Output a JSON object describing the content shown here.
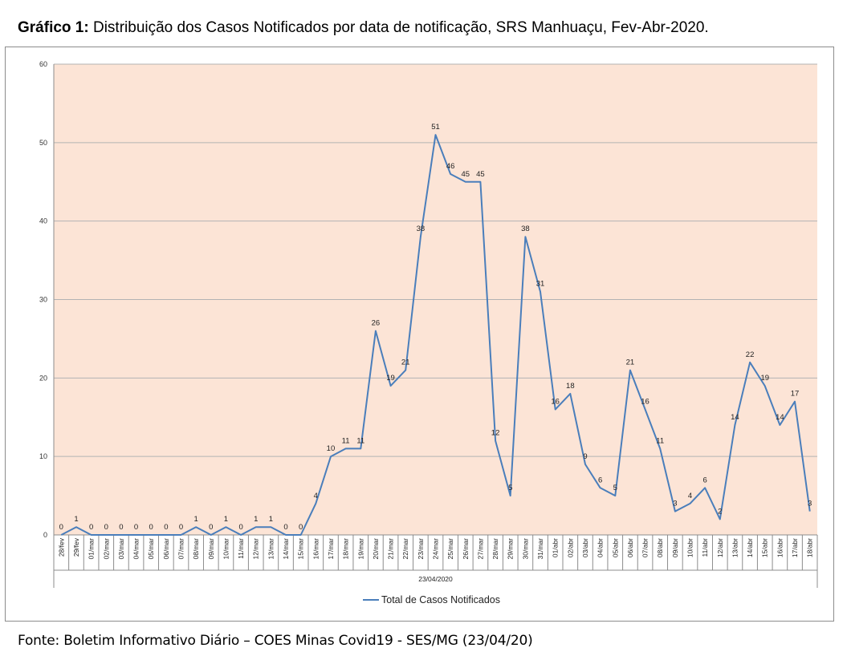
{
  "header": {
    "title_prefix": "Gráfico 1:",
    "title_text": " Distribuição dos Casos Notificados por data de notificação, SRS Manhuaçu, Fev-Abr-2020."
  },
  "footer": {
    "source": "Fonte: Boletim Informativo Diário – COES Minas Covid19  - SES/MG (23/04/20)"
  },
  "colors": {
    "plot_background": "#fce4d6",
    "line": "#4a7ebb",
    "grid": "#b3b3b3"
  },
  "chart_data": {
    "type": "line",
    "title": "",
    "xlabel": "",
    "ylabel": "",
    "x_group_label": "23/04/2020",
    "ylim": [
      0,
      60
    ],
    "yticks": [
      0,
      10,
      20,
      30,
      40,
      50,
      60
    ],
    "grid": true,
    "legend_position": "bottom",
    "categories": [
      "28/fev",
      "29/fev",
      "01/mar",
      "02/mar",
      "03/mar",
      "04/mar",
      "05/mar",
      "06/mar",
      "07/mar",
      "08/mar",
      "09/mar",
      "10/mar",
      "11/mar",
      "12/mar",
      "13/mar",
      "14/mar",
      "15/mar",
      "16/mar",
      "17/mar",
      "18/mar",
      "19/mar",
      "20/mar",
      "21/mar",
      "22/mar",
      "23/mar",
      "24/mar",
      "25/mar",
      "26/mar",
      "27/mar",
      "28/mar",
      "29/mar",
      "30/mar",
      "31/mar",
      "01/abr",
      "02/abr",
      "03/abr",
      "04/abr",
      "05/abr",
      "06/abr",
      "07/abr",
      "08/abr",
      "09/abr",
      "10/abr",
      "11/abr",
      "12/abr",
      "13/abr",
      "14/abr",
      "15/abr",
      "16/abr",
      "17/abr",
      "18/abr"
    ],
    "series": [
      {
        "name": "Total de Casos Notificados",
        "values": [
          0,
          1,
          0,
          0,
          0,
          0,
          0,
          0,
          0,
          1,
          0,
          1,
          0,
          1,
          1,
          0,
          0,
          4,
          10,
          11,
          11,
          26,
          19,
          21,
          38,
          51,
          46,
          45,
          45,
          12,
          5,
          38,
          31,
          16,
          18,
          9,
          6,
          5,
          21,
          16,
          11,
          3,
          4,
          6,
          2,
          14,
          22,
          19,
          14,
          17,
          3
        ]
      }
    ]
  }
}
